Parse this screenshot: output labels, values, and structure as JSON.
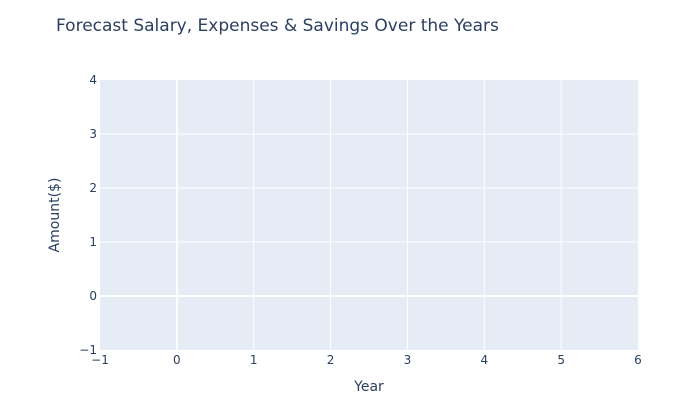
{
  "chart_data": {
    "type": "line",
    "title": "Forecast Salary, Expenses & Savings Over the Years",
    "xlabel": "Year",
    "ylabel": "Amount($)",
    "xlim": [
      -1,
      6
    ],
    "ylim": [
      -1,
      4
    ],
    "x_ticks": [
      -1,
      0,
      1,
      2,
      3,
      4,
      5,
      6
    ],
    "y_ticks": [
      -1,
      0,
      1,
      2,
      3,
      4
    ],
    "series": [],
    "grid": true,
    "colors": {
      "plot_background": "#e5ecf6",
      "grid": "#ffffff",
      "text": "#2a3f5f"
    }
  }
}
